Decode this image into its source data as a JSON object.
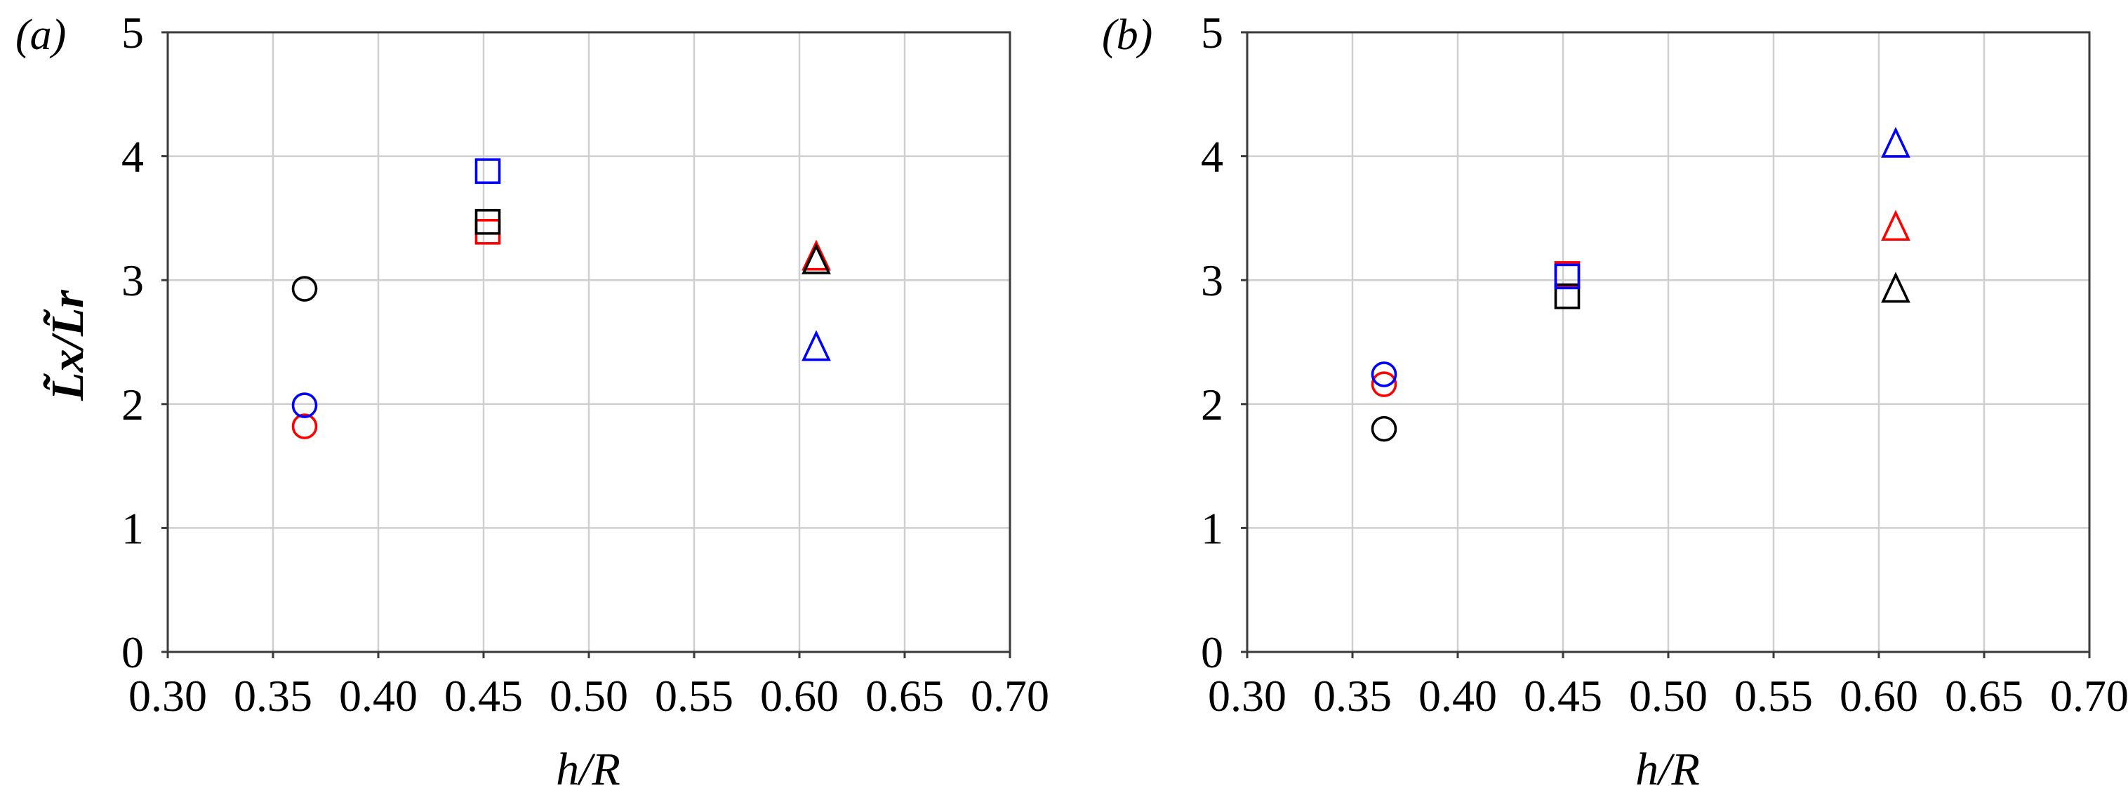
{
  "figure": {
    "panels": [
      {
        "id": "a",
        "label": "(a)",
        "label_letter": "a"
      },
      {
        "id": "b",
        "label": "(b)",
        "label_letter": "b"
      }
    ],
    "ylabel_text": "L̃x/L̃r",
    "xlabel_text": "h/R",
    "colors": {
      "black": "#000000",
      "red": "#ff0000",
      "blue": "#0000ff",
      "grid": "#cfcfcf",
      "axis": "#3a3a3a"
    }
  },
  "chart_data": [
    {
      "panel": "(a)",
      "type": "scatter",
      "title": "",
      "xlabel": "h/R",
      "ylabel": "L̃x / L̃r",
      "xlim": [
        0.3,
        0.7
      ],
      "ylim": [
        0,
        5
      ],
      "xticks": [
        "0.30",
        "0.35",
        "0.40",
        "0.45",
        "0.50",
        "0.55",
        "0.60",
        "0.65",
        "0.70"
      ],
      "yticks": [
        "0",
        "1",
        "2",
        "3",
        "4",
        "5"
      ],
      "grid": true,
      "legend": null,
      "series": [
        {
          "name": "black",
          "color": "#000000",
          "points": [
            {
              "x": 0.365,
              "y": 2.93,
              "marker": "circle"
            },
            {
              "x": 0.452,
              "y": 3.47,
              "marker": "square"
            },
            {
              "x": 0.608,
              "y": 3.16,
              "marker": "triangle"
            }
          ]
        },
        {
          "name": "red",
          "color": "#ff0000",
          "points": [
            {
              "x": 0.365,
              "y": 1.82,
              "marker": "circle"
            },
            {
              "x": 0.452,
              "y": 3.39,
              "marker": "square"
            },
            {
              "x": 0.608,
              "y": 3.19,
              "marker": "triangle"
            }
          ]
        },
        {
          "name": "blue",
          "color": "#0000ff",
          "points": [
            {
              "x": 0.365,
              "y": 1.99,
              "marker": "circle"
            },
            {
              "x": 0.452,
              "y": 3.88,
              "marker": "square"
            },
            {
              "x": 0.608,
              "y": 2.46,
              "marker": "triangle"
            }
          ]
        }
      ],
      "draw_order": [
        "red",
        "black",
        "blue"
      ]
    },
    {
      "panel": "(b)",
      "type": "scatter",
      "title": "",
      "xlabel": "h/R",
      "ylabel": "",
      "xlim": [
        0.3,
        0.7
      ],
      "ylim": [
        0,
        5
      ],
      "xticks": [
        "0.30",
        "0.35",
        "0.40",
        "0.45",
        "0.50",
        "0.55",
        "0.60",
        "0.65",
        "0.70"
      ],
      "yticks": [
        "0",
        "1",
        "2",
        "3",
        "4",
        "5"
      ],
      "grid": true,
      "legend": null,
      "series": [
        {
          "name": "black",
          "color": "#000000",
          "points": [
            {
              "x": 0.365,
              "y": 1.8,
              "marker": "circle"
            },
            {
              "x": 0.452,
              "y": 2.87,
              "marker": "square"
            },
            {
              "x": 0.608,
              "y": 2.93,
              "marker": "triangle"
            }
          ]
        },
        {
          "name": "red",
          "color": "#ff0000",
          "points": [
            {
              "x": 0.365,
              "y": 2.16,
              "marker": "circle"
            },
            {
              "x": 0.452,
              "y": 3.05,
              "marker": "square"
            },
            {
              "x": 0.608,
              "y": 3.43,
              "marker": "triangle"
            }
          ]
        },
        {
          "name": "blue",
          "color": "#0000ff",
          "points": [
            {
              "x": 0.365,
              "y": 2.24,
              "marker": "circle"
            },
            {
              "x": 0.452,
              "y": 3.03,
              "marker": "square"
            },
            {
              "x": 0.608,
              "y": 4.1,
              "marker": "triangle"
            }
          ]
        }
      ],
      "draw_order": [
        "red",
        "black",
        "blue"
      ]
    }
  ]
}
